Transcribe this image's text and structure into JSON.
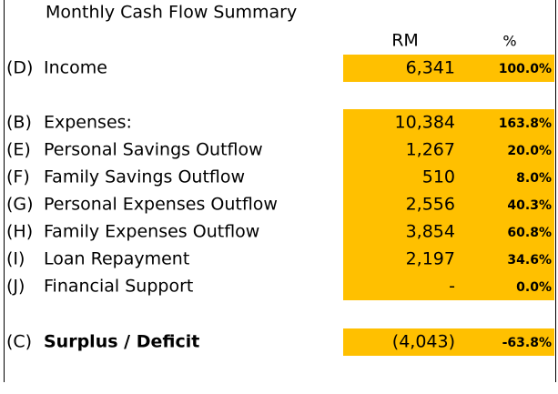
{
  "title": "Monthly Cash Flow Summary",
  "columns": {
    "rm": "RM",
    "pct": "%"
  },
  "rows": [
    {
      "code": "(D)",
      "label": "Income",
      "rm": "6,341",
      "pct": "100.0%"
    },
    {
      "code": "(B)",
      "label": "Expenses:",
      "rm": "10,384",
      "pct": "163.8%"
    },
    {
      "code": "(E)",
      "label": "Personal Savings Outflow",
      "rm": "1,267",
      "pct": "20.0%"
    },
    {
      "code": "(F)",
      "label": "Family Savings Outflow",
      "rm": "510",
      "pct": "8.0%"
    },
    {
      "code": "(G)",
      "label": "Personal Expenses Outflow",
      "rm": "2,556",
      "pct": "40.3%"
    },
    {
      "code": "(H)",
      "label": "Family Expenses Outflow",
      "rm": "3,854",
      "pct": "60.8%"
    },
    {
      "code": "(I)",
      "label": "Loan Repayment",
      "rm": "2,197",
      "pct": "34.6%"
    },
    {
      "code": "(J)",
      "label": "Financial Support",
      "rm": "-",
      "pct": "0.0%"
    },
    {
      "code": "(C)",
      "label": "Surplus / Deficit",
      "rm": "(4,043)",
      "pct": "-63.8%"
    }
  ]
}
